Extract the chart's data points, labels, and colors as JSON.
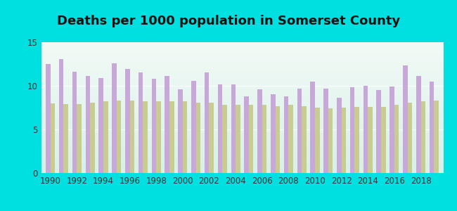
{
  "title": "Deaths per 1000 population in Somerset County",
  "years": [
    1990,
    1991,
    1992,
    1993,
    1994,
    1995,
    1996,
    1997,
    1998,
    1999,
    2000,
    2001,
    2002,
    2003,
    2004,
    2005,
    2006,
    2007,
    2008,
    2009,
    2010,
    2011,
    2012,
    2013,
    2014,
    2015,
    2016,
    2017,
    2018,
    2019
  ],
  "somerset": [
    12.5,
    13.1,
    11.6,
    11.1,
    10.9,
    12.6,
    11.9,
    11.5,
    10.8,
    11.1,
    9.6,
    10.6,
    11.5,
    10.2,
    10.2,
    8.8,
    9.6,
    9.0,
    8.8,
    9.7,
    10.5,
    9.7,
    8.6,
    9.8,
    10.0,
    9.5,
    9.9,
    12.3,
    11.1,
    10.5
  ],
  "maryland": [
    8.0,
    7.9,
    7.9,
    8.1,
    8.2,
    8.3,
    8.3,
    8.2,
    8.2,
    8.2,
    8.2,
    8.1,
    8.1,
    7.8,
    7.8,
    7.8,
    7.8,
    7.7,
    7.8,
    7.7,
    7.5,
    7.4,
    7.5,
    7.6,
    7.6,
    7.6,
    7.8,
    8.1,
    8.2,
    8.3
  ],
  "somerset_color": "#c8a8d8",
  "maryland_color": "#c8cc90",
  "background_color": "#00e0e0",
  "ylim": [
    0,
    15
  ],
  "yticks": [
    0,
    5,
    10,
    15
  ],
  "bar_width": 0.35,
  "title_fontsize": 13,
  "tick_fontsize": 8.5
}
